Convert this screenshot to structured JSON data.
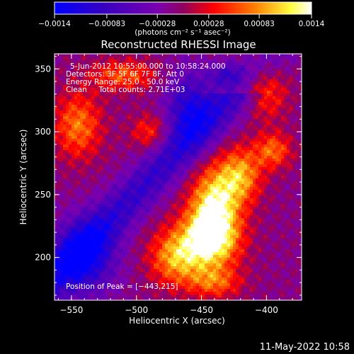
{
  "chart_data": {
    "type": "heatmap",
    "title": "Reconstructed RHESSI Image",
    "xlabel": "Heliocentric X (arcsec)",
    "ylabel": "Heliocentric Y (arcsec)",
    "xlim": [
      -563,
      -373
    ],
    "ylim": [
      166,
      362
    ],
    "x_ticks": [
      -550,
      -500,
      -450,
      -400
    ],
    "y_ticks": [
      200,
      250,
      300,
      350
    ],
    "x_tick_labels": [
      "−550",
      "−500",
      "−450",
      "−400"
    ],
    "y_tick_labels": [
      "200",
      "250",
      "300",
      "350"
    ],
    "annotations": [
      "5-Jun-2012 10:55:00.000 to 10:58:24.000",
      "Detectors: 3F 5F 6F 7F 8F, Att 0",
      "Energy Range: 25.0 - 50.0 keV",
      "Clean     Total counts: 2.71E+03"
    ],
    "peak_label": "Position of Peak = [−443,215]",
    "peak": [
      -443,
      215
    ],
    "colorbar": {
      "vmin": -0.0014,
      "vmax": 0.0014,
      "ticks": [
        -0.0014,
        -0.00083,
        -0.00028,
        0.00028,
        0.00083,
        0.0014
      ],
      "tick_labels": [
        "−0.0014",
        "−0.00083",
        "−0.00028",
        "0.00028",
        "0.00083",
        "0.0014"
      ],
      "units_label": "(photons cm⁻² s⁻¹ asec⁻²)",
      "colors": [
        "#0000ff",
        "#3a00c0",
        "#7a00b0",
        "#900060",
        "#ff0000",
        "#ff8000",
        "#ffff40",
        "#ffffff"
      ]
    },
    "grid": false,
    "legend": "none"
  },
  "footer": {
    "date": "11-May-2022 10:58"
  }
}
